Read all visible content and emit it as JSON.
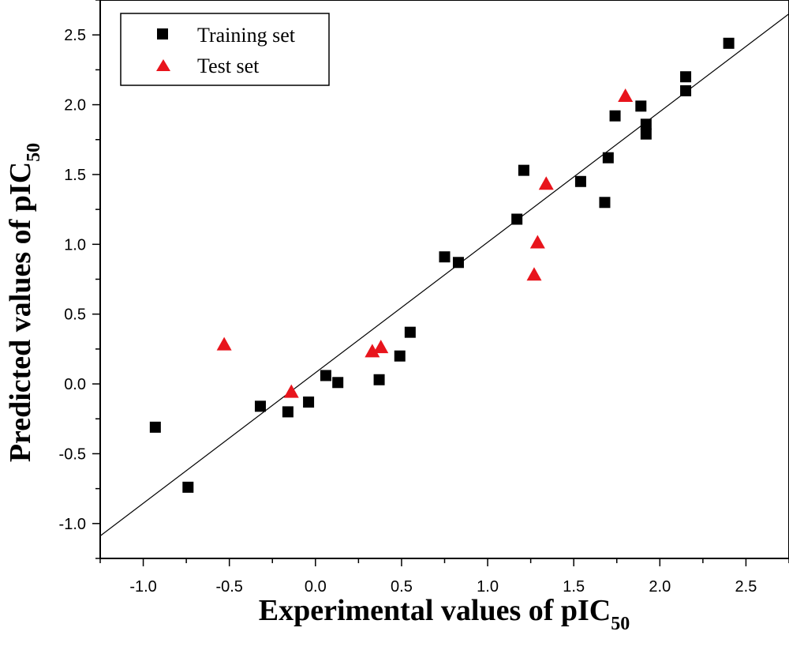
{
  "chart_data": {
    "type": "scatter",
    "xlabel": {
      "main": "Experimental values of pIC",
      "sub": "50"
    },
    "ylabel": {
      "main": "Predicted values of pIC",
      "sub": "50"
    },
    "xlim": [
      -1.25,
      2.75
    ],
    "ylim": [
      -1.25,
      2.75
    ],
    "xticks": [
      -1.0,
      -0.5,
      0.0,
      0.5,
      1.0,
      1.5,
      2.0,
      2.5
    ],
    "yticks": [
      -1.0,
      -0.5,
      0.0,
      0.5,
      1.0,
      1.5,
      2.0,
      2.5
    ],
    "xtick_labels": [
      "-1.0",
      "-0.5",
      "0.0",
      "0.5",
      "1.0",
      "1.5",
      "2.0",
      "2.5"
    ],
    "ytick_labels": [
      "-1.0",
      "-0.5",
      "0.0",
      "0.5",
      "1.0",
      "1.5",
      "2.0",
      "2.5"
    ],
    "grid": false,
    "legend_position": "top-left",
    "fit_line": {
      "slope": 0.935,
      "intercept": 0.08
    },
    "series": [
      {
        "name": "Training set",
        "marker": "square",
        "color": "#000000",
        "points": [
          [
            -0.93,
            -0.31
          ],
          [
            -0.74,
            -0.74
          ],
          [
            -0.32,
            -0.16
          ],
          [
            -0.16,
            -0.2
          ],
          [
            -0.04,
            -0.13
          ],
          [
            0.06,
            0.06
          ],
          [
            0.13,
            0.01
          ],
          [
            0.37,
            0.03
          ],
          [
            0.49,
            0.2
          ],
          [
            0.55,
            0.37
          ],
          [
            0.75,
            0.91
          ],
          [
            0.83,
            0.87
          ],
          [
            1.17,
            1.18
          ],
          [
            1.21,
            1.53
          ],
          [
            1.54,
            1.45
          ],
          [
            1.68,
            1.3
          ],
          [
            1.7,
            1.62
          ],
          [
            1.74,
            1.92
          ],
          [
            1.89,
            1.99
          ],
          [
            1.92,
            1.86
          ],
          [
            1.92,
            1.79
          ],
          [
            2.15,
            2.2
          ],
          [
            2.15,
            2.1
          ],
          [
            2.4,
            2.44
          ]
        ]
      },
      {
        "name": "Test set",
        "marker": "triangle",
        "color": "#e8141c",
        "points": [
          [
            -0.53,
            0.28
          ],
          [
            -0.14,
            -0.06
          ],
          [
            0.33,
            0.23
          ],
          [
            0.38,
            0.26
          ],
          [
            1.27,
            0.78
          ],
          [
            1.29,
            1.01
          ],
          [
            1.34,
            1.43
          ],
          [
            1.8,
            2.06
          ]
        ]
      }
    ]
  }
}
